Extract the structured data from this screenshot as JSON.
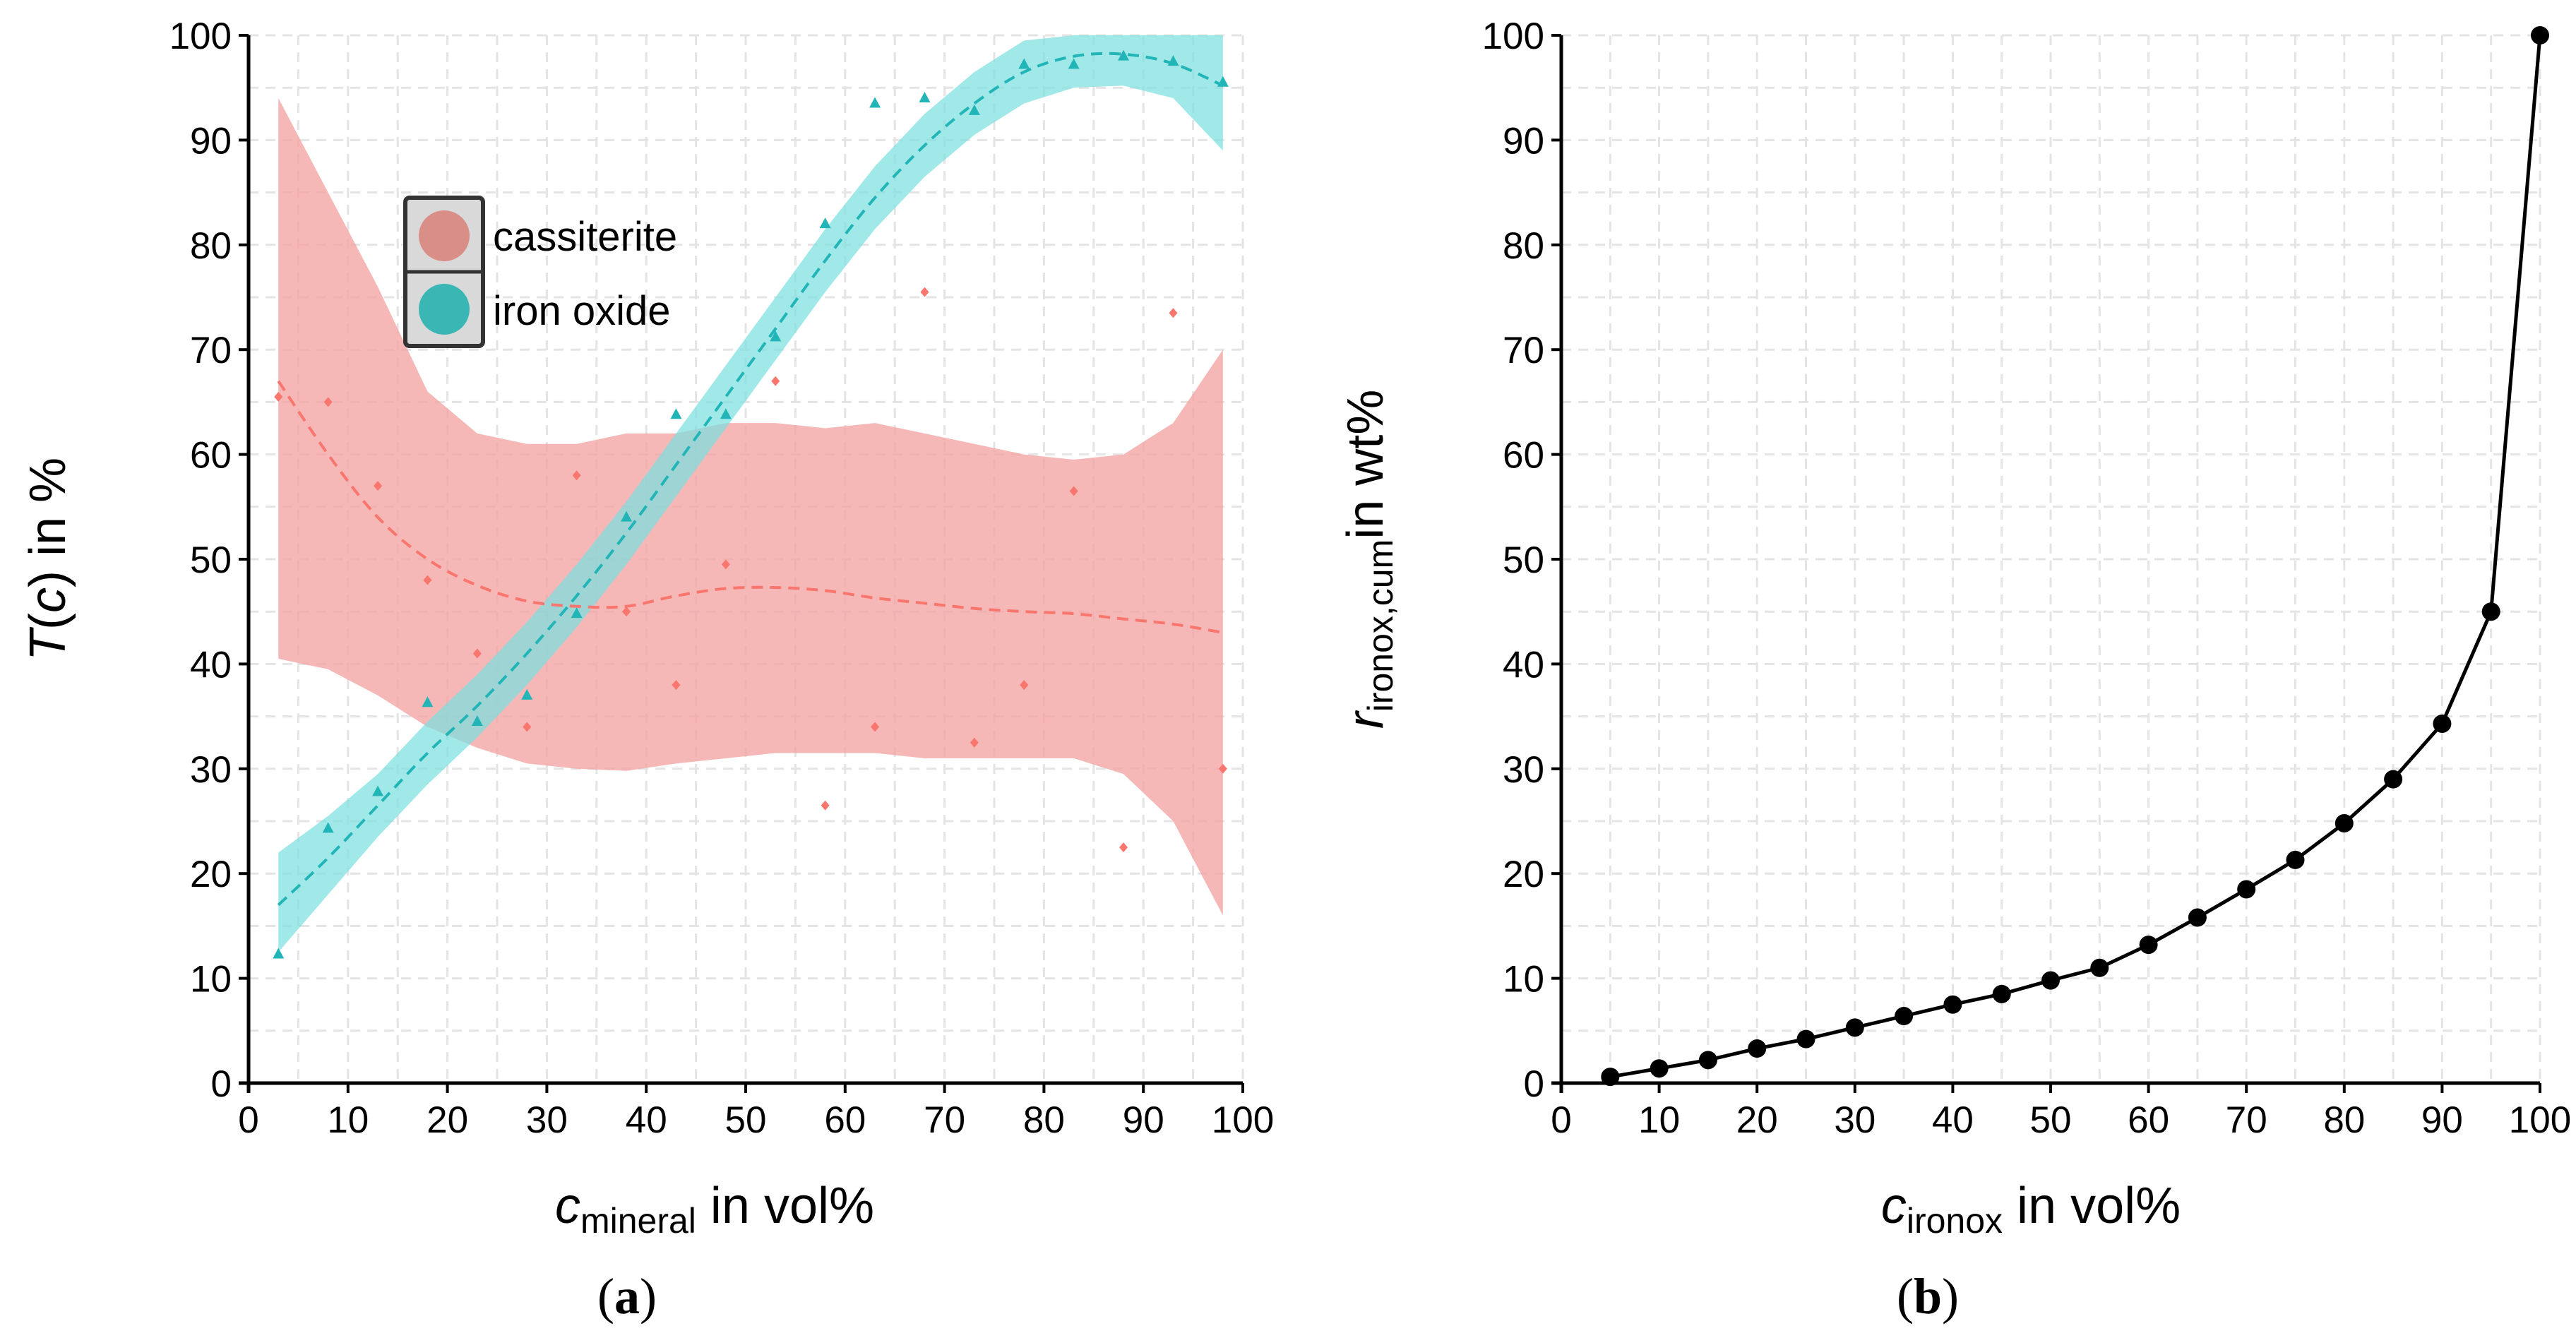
{
  "chart_data": [
    {
      "type": "scatter",
      "panel_label": "a",
      "ylabel_italic": "T",
      "ylabel_paren": "(",
      "ylabel_c": "c",
      "ylabel_rest": ") in %",
      "xlabel_main": "c",
      "xlabel_sub": "mineral",
      "xlabel_rest": " in vol%",
      "xlim": [
        0,
        100
      ],
      "ylim": [
        0,
        100
      ],
      "xticks": [
        0,
        10,
        20,
        30,
        40,
        50,
        60,
        70,
        80,
        90,
        100
      ],
      "yticks": [
        0,
        10,
        20,
        30,
        40,
        50,
        60,
        70,
        80,
        90,
        100
      ],
      "legend": [
        "cassiterite",
        "iron oxide"
      ],
      "series": [
        {
          "name": "cassiterite",
          "color": "#f8766d",
          "band_color": "#f4a3a3",
          "marker": "diamond",
          "points": [
            [
              3,
              65.5
            ],
            [
              8,
              65
            ],
            [
              13,
              57
            ],
            [
              18,
              48
            ],
            [
              23,
              41
            ],
            [
              28,
              34
            ],
            [
              33,
              58
            ],
            [
              38,
              45
            ],
            [
              43,
              38
            ],
            [
              48,
              49.5
            ],
            [
              53,
              67
            ],
            [
              58,
              26.5
            ],
            [
              63,
              34
            ],
            [
              68,
              75.5
            ],
            [
              73,
              32.5
            ],
            [
              78,
              38
            ],
            [
              83,
              56.5
            ],
            [
              88,
              22.5
            ],
            [
              93,
              73.5
            ],
            [
              98,
              30
            ]
          ],
          "fit": [
            [
              3,
              67
            ],
            [
              8,
              60
            ],
            [
              13,
              54
            ],
            [
              18,
              50
            ],
            [
              23,
              47.5
            ],
            [
              28,
              46
            ],
            [
              33,
              45.5
            ],
            [
              38,
              45.5
            ],
            [
              43,
              46.5
            ],
            [
              48,
              47.2
            ],
            [
              53,
              47.3
            ],
            [
              58,
              47
            ],
            [
              63,
              46.3
            ],
            [
              68,
              45.8
            ],
            [
              73,
              45.3
            ],
            [
              78,
              45
            ],
            [
              83,
              44.8
            ],
            [
              88,
              44.3
            ],
            [
              93,
              43.8
            ],
            [
              98,
              43
            ]
          ],
          "lower": [
            [
              3,
              40.5
            ],
            [
              8,
              39.5
            ],
            [
              13,
              37
            ],
            [
              18,
              34
            ],
            [
              23,
              32
            ],
            [
              28,
              30.5
            ],
            [
              33,
              30
            ],
            [
              38,
              29.8
            ],
            [
              43,
              30.5
            ],
            [
              48,
              31
            ],
            [
              53,
              31.5
            ],
            [
              58,
              31.5
            ],
            [
              63,
              31.5
            ],
            [
              68,
              31
            ],
            [
              73,
              31
            ],
            [
              78,
              31
            ],
            [
              83,
              31
            ],
            [
              88,
              29.5
            ],
            [
              93,
              25
            ],
            [
              98,
              16
            ]
          ],
          "upper": [
            [
              3,
              94
            ],
            [
              8,
              85
            ],
            [
              13,
              76
            ],
            [
              18,
              66
            ],
            [
              23,
              62
            ],
            [
              28,
              61
            ],
            [
              33,
              61
            ],
            [
              38,
              62
            ],
            [
              43,
              62
            ],
            [
              48,
              63
            ],
            [
              53,
              63
            ],
            [
              58,
              62.5
            ],
            [
              63,
              63
            ],
            [
              68,
              62
            ],
            [
              73,
              61
            ],
            [
              78,
              60
            ],
            [
              83,
              59.5
            ],
            [
              88,
              60
            ],
            [
              93,
              63
            ],
            [
              98,
              70
            ]
          ]
        },
        {
          "name": "iron oxide",
          "color": "#22b5b8",
          "band_color": "#7ddfe1",
          "marker": "triangle",
          "points": [
            [
              3,
              12.3
            ],
            [
              8,
              24.3
            ],
            [
              13,
              27.8
            ],
            [
              18,
              36.3
            ],
            [
              23,
              34.5
            ],
            [
              28,
              37
            ],
            [
              33,
              44.8
            ],
            [
              38,
              54
            ],
            [
              43,
              63.8
            ],
            [
              48,
              63.8
            ],
            [
              53,
              71.2
            ],
            [
              58,
              82
            ],
            [
              63,
              93.5
            ],
            [
              68,
              94
            ],
            [
              73,
              92.8
            ],
            [
              78,
              97.2
            ],
            [
              83,
              97.2
            ],
            [
              88,
              98
            ],
            [
              93,
              97.5
            ],
            [
              98,
              95.5
            ]
          ],
          "fit": [
            [
              3,
              17
            ],
            [
              8,
              21.5
            ],
            [
              13,
              26.5
            ],
            [
              18,
              31.5
            ],
            [
              23,
              36
            ],
            [
              28,
              41
            ],
            [
              33,
              46.5
            ],
            [
              38,
              52.5
            ],
            [
              43,
              59
            ],
            [
              48,
              65.5
            ],
            [
              53,
              72
            ],
            [
              58,
              78.5
            ],
            [
              63,
              84.5
            ],
            [
              68,
              89.5
            ],
            [
              73,
              93.5
            ],
            [
              78,
              96.5
            ],
            [
              83,
              98
            ],
            [
              88,
              98.2
            ],
            [
              93,
              97.3
            ],
            [
              98,
              95.2
            ]
          ],
          "lower": [
            [
              3,
              12.5
            ],
            [
              8,
              18
            ],
            [
              13,
              23.5
            ],
            [
              18,
              28.5
            ],
            [
              23,
              33
            ],
            [
              28,
              38
            ],
            [
              33,
              43.5
            ],
            [
              38,
              49.5
            ],
            [
              43,
              56
            ],
            [
              48,
              62.5
            ],
            [
              53,
              69
            ],
            [
              58,
              75.5
            ],
            [
              63,
              81.5
            ],
            [
              68,
              86.5
            ],
            [
              73,
              90.5
            ],
            [
              78,
              93.5
            ],
            [
              83,
              95
            ],
            [
              88,
              95.2
            ],
            [
              93,
              94
            ],
            [
              98,
              89
            ]
          ],
          "upper": [
            [
              3,
              22
            ],
            [
              8,
              25.5
            ],
            [
              13,
              29.5
            ],
            [
              18,
              34.5
            ],
            [
              23,
              39
            ],
            [
              28,
              44
            ],
            [
              33,
              49.5
            ],
            [
              38,
              55.5
            ],
            [
              43,
              62
            ],
            [
              48,
              68.5
            ],
            [
              53,
              75
            ],
            [
              58,
              81.5
            ],
            [
              63,
              87.5
            ],
            [
              68,
              92.5
            ],
            [
              73,
              96.5
            ],
            [
              78,
              99.5
            ],
            [
              83,
              100
            ],
            [
              88,
              100
            ],
            [
              93,
              100
            ],
            [
              98,
              100
            ]
          ]
        }
      ]
    },
    {
      "type": "line",
      "panel_label": "b",
      "ylabel_main": "r",
      "ylabel_sub": "ironox,cum",
      "ylabel_rest": "in wt%",
      "xlabel_main": "c",
      "xlabel_sub": "ironox",
      "xlabel_rest": " in vol%",
      "xlim": [
        0,
        100
      ],
      "ylim": [
        0,
        100
      ],
      "xticks": [
        0,
        10,
        20,
        30,
        40,
        50,
        60,
        70,
        80,
        90,
        100
      ],
      "yticks": [
        0,
        10,
        20,
        30,
        40,
        50,
        60,
        70,
        80,
        90,
        100
      ],
      "x": [
        5,
        10,
        15,
        20,
        25,
        30,
        35,
        40,
        45,
        50,
        55,
        60,
        65,
        70,
        75,
        80,
        85,
        90,
        95,
        100
      ],
      "y": [
        0.6,
        1.4,
        2.2,
        3.3,
        4.2,
        5.3,
        6.4,
        7.5,
        8.5,
        9.8,
        11,
        13.2,
        15.8,
        18.5,
        21.3,
        24.8,
        29,
        34.3,
        45,
        100
      ]
    }
  ],
  "captions": {
    "a": "(a)",
    "b": "(b)"
  }
}
